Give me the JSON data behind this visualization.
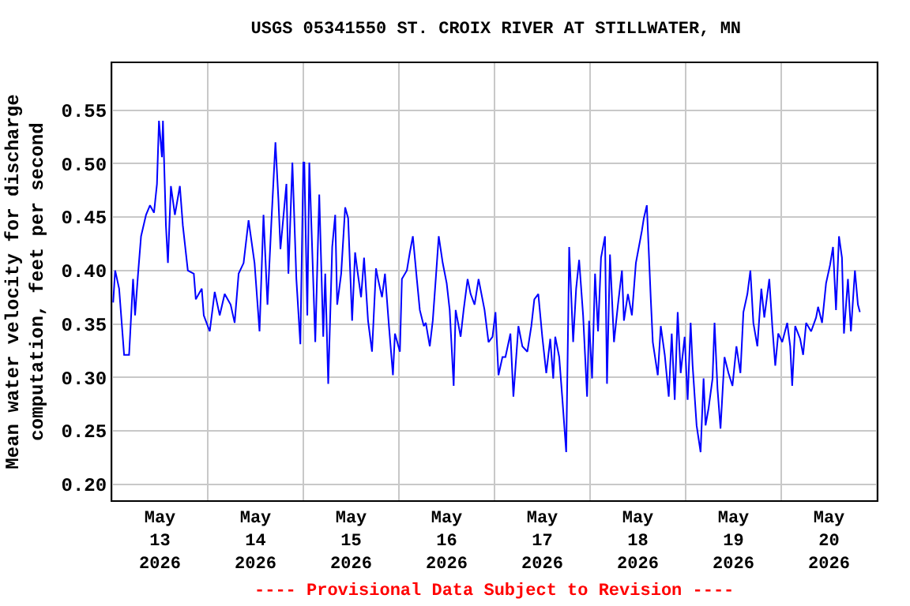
{
  "chart_data": {
    "type": "line",
    "title": "USGS 05341550 ST. CROIX RIVER AT STILLWATER, MN",
    "ylabel": "Mean water velocity for discharge\ncomputation, feet per second",
    "annotations": [
      "---- Provisional Data Subject to Revision ----"
    ],
    "x": [
      "2026-05-13T00:15",
      "2026-05-13T00:45",
      "2026-05-13T01:45",
      "2026-05-13T03:00",
      "2026-05-13T04:15",
      "2026-05-13T05:15",
      "2026-05-13T05:45",
      "2026-05-13T06:30",
      "2026-05-13T07:15",
      "2026-05-13T08:30",
      "2026-05-13T09:30",
      "2026-05-13T10:30",
      "2026-05-13T11:15",
      "2026-05-13T11:45",
      "2026-05-13T12:30",
      "2026-05-13T12:45",
      "2026-05-13T13:30",
      "2026-05-13T14:00",
      "2026-05-13T14:45",
      "2026-05-13T15:45",
      "2026-05-13T17:00",
      "2026-05-13T17:45",
      "2026-05-13T19:00",
      "2026-05-13T20:30",
      "2026-05-13T21:00",
      "2026-05-13T22:30",
      "2026-05-13T23:00",
      "2026-05-14T00:30",
      "2026-05-14T01:45",
      "2026-05-14T03:00",
      "2026-05-14T04:15",
      "2026-05-14T05:45",
      "2026-05-14T06:45",
      "2026-05-14T07:45",
      "2026-05-14T09:00",
      "2026-05-14T10:15",
      "2026-05-14T11:45",
      "2026-05-14T13:00",
      "2026-05-14T14:00",
      "2026-05-14T15:00",
      "2026-05-14T16:00",
      "2026-05-14T17:00",
      "2026-05-14T17:45",
      "2026-05-14T18:15",
      "2026-05-14T19:45",
      "2026-05-14T20:15",
      "2026-05-14T21:15",
      "2026-05-14T22:15",
      "2026-05-14T23:15",
      "2026-05-15T00:00",
      "2026-05-15T00:15",
      "2026-05-15T01:00",
      "2026-05-15T01:30",
      "2026-05-15T03:00",
      "2026-05-15T04:00",
      "2026-05-15T05:00",
      "2026-05-15T05:30",
      "2026-05-15T06:15",
      "2026-05-15T07:15",
      "2026-05-15T08:00",
      "2026-05-15T08:30",
      "2026-05-15T09:30",
      "2026-05-15T10:30",
      "2026-05-15T11:15",
      "2026-05-15T12:15",
      "2026-05-15T13:00",
      "2026-05-15T13:30",
      "2026-05-15T14:30",
      "2026-05-15T15:15",
      "2026-05-15T16:15",
      "2026-05-15T17:15",
      "2026-05-15T18:15",
      "2026-05-15T18:45",
      "2026-05-15T19:45",
      "2026-05-15T20:30",
      "2026-05-15T21:30",
      "2026-05-15T22:30",
      "2026-05-15T23:00",
      "2026-05-16T00:15",
      "2026-05-16T00:45",
      "2026-05-16T02:00",
      "2026-05-16T02:45",
      "2026-05-16T03:30",
      "2026-05-16T04:30",
      "2026-05-16T05:15",
      "2026-05-16T06:15",
      "2026-05-16T06:45",
      "2026-05-16T07:45",
      "2026-05-16T08:30",
      "2026-05-16T09:15",
      "2026-05-16T10:00",
      "2026-05-16T11:00",
      "2026-05-16T12:00",
      "2026-05-16T12:45",
      "2026-05-16T13:45",
      "2026-05-16T14:15",
      "2026-05-16T15:30",
      "2026-05-16T16:15",
      "2026-05-16T17:15",
      "2026-05-16T18:00",
      "2026-05-16T19:00",
      "2026-05-16T20:00",
      "2026-05-16T21:30",
      "2026-05-16T22:30",
      "2026-05-16T23:30",
      "2026-05-17T00:15",
      "2026-05-17T01:00",
      "2026-05-17T02:00",
      "2026-05-17T02:45",
      "2026-05-17T04:00",
      "2026-05-17T04:45",
      "2026-05-17T06:00",
      "2026-05-17T07:00",
      "2026-05-17T08:15",
      "2026-05-17T09:15",
      "2026-05-17T10:00",
      "2026-05-17T11:00",
      "2026-05-17T12:00",
      "2026-05-17T13:00",
      "2026-05-17T14:00",
      "2026-05-17T14:45",
      "2026-05-17T15:15",
      "2026-05-17T16:15",
      "2026-05-17T17:00",
      "2026-05-17T18:00",
      "2026-05-17T18:30",
      "2026-05-17T18:45",
      "2026-05-17T19:45",
      "2026-05-17T20:30",
      "2026-05-17T21:15",
      "2026-05-17T22:15",
      "2026-05-17T23:15",
      "2026-05-17T23:45",
      "2026-05-18T00:30",
      "2026-05-18T01:15",
      "2026-05-18T02:00",
      "2026-05-18T02:45",
      "2026-05-18T03:45",
      "2026-05-18T04:15",
      "2026-05-18T05:00",
      "2026-05-18T06:00",
      "2026-05-18T07:00",
      "2026-05-18T08:00",
      "2026-05-18T08:30",
      "2026-05-18T09:30",
      "2026-05-18T10:30",
      "2026-05-18T11:30",
      "2026-05-18T12:15",
      "2026-05-18T13:00",
      "2026-05-18T13:30",
      "2026-05-18T14:15",
      "2026-05-18T15:15",
      "2026-05-18T15:45",
      "2026-05-18T17:00",
      "2026-05-18T17:45",
      "2026-05-18T18:45",
      "2026-05-18T19:45",
      "2026-05-18T20:30",
      "2026-05-18T21:15",
      "2026-05-18T22:00",
      "2026-05-18T22:45",
      "2026-05-18T23:45",
      "2026-05-19T00:30",
      "2026-05-19T01:15",
      "2026-05-19T01:45",
      "2026-05-19T02:45",
      "2026-05-19T03:45",
      "2026-05-19T04:30",
      "2026-05-19T05:00",
      "2026-05-19T05:45",
      "2026-05-19T06:45",
      "2026-05-19T07:15",
      "2026-05-19T08:00",
      "2026-05-19T08:45",
      "2026-05-19T09:45",
      "2026-05-19T10:45",
      "2026-05-19T11:45",
      "2026-05-19T12:45",
      "2026-05-19T13:45",
      "2026-05-19T14:30",
      "2026-05-19T15:30",
      "2026-05-19T16:15",
      "2026-05-19T17:00",
      "2026-05-19T18:00",
      "2026-05-19T19:00",
      "2026-05-19T19:45",
      "2026-05-19T21:00",
      "2026-05-19T21:45",
      "2026-05-19T22:30",
      "2026-05-19T23:15",
      "2026-05-20T00:15",
      "2026-05-20T01:30",
      "2026-05-20T02:15",
      "2026-05-20T02:45",
      "2026-05-20T03:30",
      "2026-05-20T04:45",
      "2026-05-20T05:30",
      "2026-05-20T06:15",
      "2026-05-20T07:30",
      "2026-05-20T08:45",
      "2026-05-20T09:15",
      "2026-05-20T10:15",
      "2026-05-20T11:15",
      "2026-05-20T12:15",
      "2026-05-20T13:00",
      "2026-05-20T13:45",
      "2026-05-20T14:30",
      "2026-05-20T15:15",
      "2026-05-20T15:45",
      "2026-05-20T16:45",
      "2026-05-20T17:30",
      "2026-05-20T18:30",
      "2026-05-20T19:15",
      "2026-05-20T19:45"
    ],
    "series": [
      {
        "color": "#0000ff",
        "values": [
          0.37,
          0.4,
          0.383,
          0.321,
          0.321,
          0.392,
          0.358,
          0.397,
          0.432,
          0.452,
          0.461,
          0.454,
          0.481,
          0.54,
          0.506,
          0.54,
          0.442,
          0.407,
          0.479,
          0.452,
          0.479,
          0.442,
          0.4,
          0.397,
          0.373,
          0.383,
          0.358,
          0.343,
          0.38,
          0.358,
          0.378,
          0.368,
          0.351,
          0.397,
          0.407,
          0.447,
          0.407,
          0.343,
          0.452,
          0.368,
          0.447,
          0.52,
          0.466,
          0.42,
          0.481,
          0.397,
          0.501,
          0.392,
          0.331,
          0.501,
          0.501,
          0.358,
          0.501,
          0.333,
          0.471,
          0.338,
          0.397,
          0.294,
          0.422,
          0.452,
          0.368,
          0.397,
          0.459,
          0.449,
          0.353,
          0.417,
          0.402,
          0.375,
          0.412,
          0.353,
          0.324,
          0.402,
          0.392,
          0.375,
          0.397,
          0.348,
          0.302,
          0.341,
          0.324,
          0.392,
          0.4,
          0.417,
          0.432,
          0.392,
          0.363,
          0.348,
          0.351,
          0.329,
          0.353,
          0.392,
          0.432,
          0.407,
          0.388,
          0.363,
          0.292,
          0.363,
          0.338,
          0.363,
          0.392,
          0.378,
          0.368,
          0.392,
          0.363,
          0.333,
          0.338,
          0.361,
          0.302,
          0.319,
          0.319,
          0.341,
          0.282,
          0.348,
          0.329,
          0.324,
          0.348,
          0.373,
          0.378,
          0.338,
          0.304,
          0.336,
          0.299,
          0.338,
          0.319,
          0.282,
          0.23,
          0.353,
          0.422,
          0.333,
          0.383,
          0.41,
          0.358,
          0.282,
          0.353,
          0.299,
          0.397,
          0.343,
          0.412,
          0.432,
          0.294,
          0.415,
          0.333,
          0.368,
          0.4,
          0.353,
          0.378,
          0.358,
          0.407,
          0.422,
          0.437,
          0.449,
          0.461,
          0.373,
          0.333,
          0.302,
          0.348,
          0.321,
          0.282,
          0.341,
          0.279,
          0.361,
          0.304,
          0.338,
          0.279,
          0.351,
          0.311,
          0.255,
          0.23,
          0.299,
          0.255,
          0.271,
          0.299,
          0.351,
          0.289,
          0.252,
          0.319,
          0.304,
          0.292,
          0.329,
          0.304,
          0.361,
          0.378,
          0.4,
          0.351,
          0.329,
          0.383,
          0.356,
          0.392,
          0.348,
          0.311,
          0.341,
          0.333,
          0.351,
          0.329,
          0.292,
          0.348,
          0.336,
          0.321,
          0.351,
          0.343,
          0.356,
          0.366,
          0.351,
          0.388,
          0.405,
          0.422,
          0.363,
          0.432,
          0.412,
          0.341,
          0.392,
          0.343,
          0.4,
          0.368,
          0.361
        ]
      }
    ],
    "xlim": [
      "2026-05-13T00:00",
      "2026-05-21T00:00"
    ],
    "xticks": [
      {
        "value": "2026-05-13T00:00",
        "label": null
      },
      {
        "value": "2026-05-13T12:00",
        "label": "May\n13\n2026"
      },
      {
        "value": "2026-05-14T00:00",
        "label": null
      },
      {
        "value": "2026-05-14T12:00",
        "label": "May\n14\n2026"
      },
      {
        "value": "2026-05-15T00:00",
        "label": null
      },
      {
        "value": "2026-05-15T12:00",
        "label": "May\n15\n2026"
      },
      {
        "value": "2026-05-16T00:00",
        "label": null
      },
      {
        "value": "2026-05-16T12:00",
        "label": "May\n16\n2026"
      },
      {
        "value": "2026-05-17T00:00",
        "label": null
      },
      {
        "value": "2026-05-17T12:00",
        "label": "May\n17\n2026"
      },
      {
        "value": "2026-05-18T00:00",
        "label": null
      },
      {
        "value": "2026-05-18T12:00",
        "label": "May\n18\n2026"
      },
      {
        "value": "2026-05-19T00:00",
        "label": null
      },
      {
        "value": "2026-05-19T12:00",
        "label": "May\n19\n2026"
      },
      {
        "value": "2026-05-20T00:00",
        "label": null
      },
      {
        "value": "2026-05-20T12:00",
        "label": "May\n20\n2026"
      },
      {
        "value": "2026-05-21T00:00",
        "label": null
      }
    ],
    "ylim": [
      0.185,
      0.594
    ],
    "yticks": [
      {
        "value": 0.2,
        "label": "0.20"
      },
      {
        "value": 0.25,
        "label": "0.25"
      },
      {
        "value": 0.3,
        "label": "0.30"
      },
      {
        "value": 0.35,
        "label": "0.35"
      },
      {
        "value": 0.4,
        "label": "0.40"
      },
      {
        "value": 0.45,
        "label": "0.45"
      },
      {
        "value": 0.5,
        "label": "0.50"
      },
      {
        "value": 0.55,
        "label": "0.55"
      }
    ],
    "grid": true
  }
}
